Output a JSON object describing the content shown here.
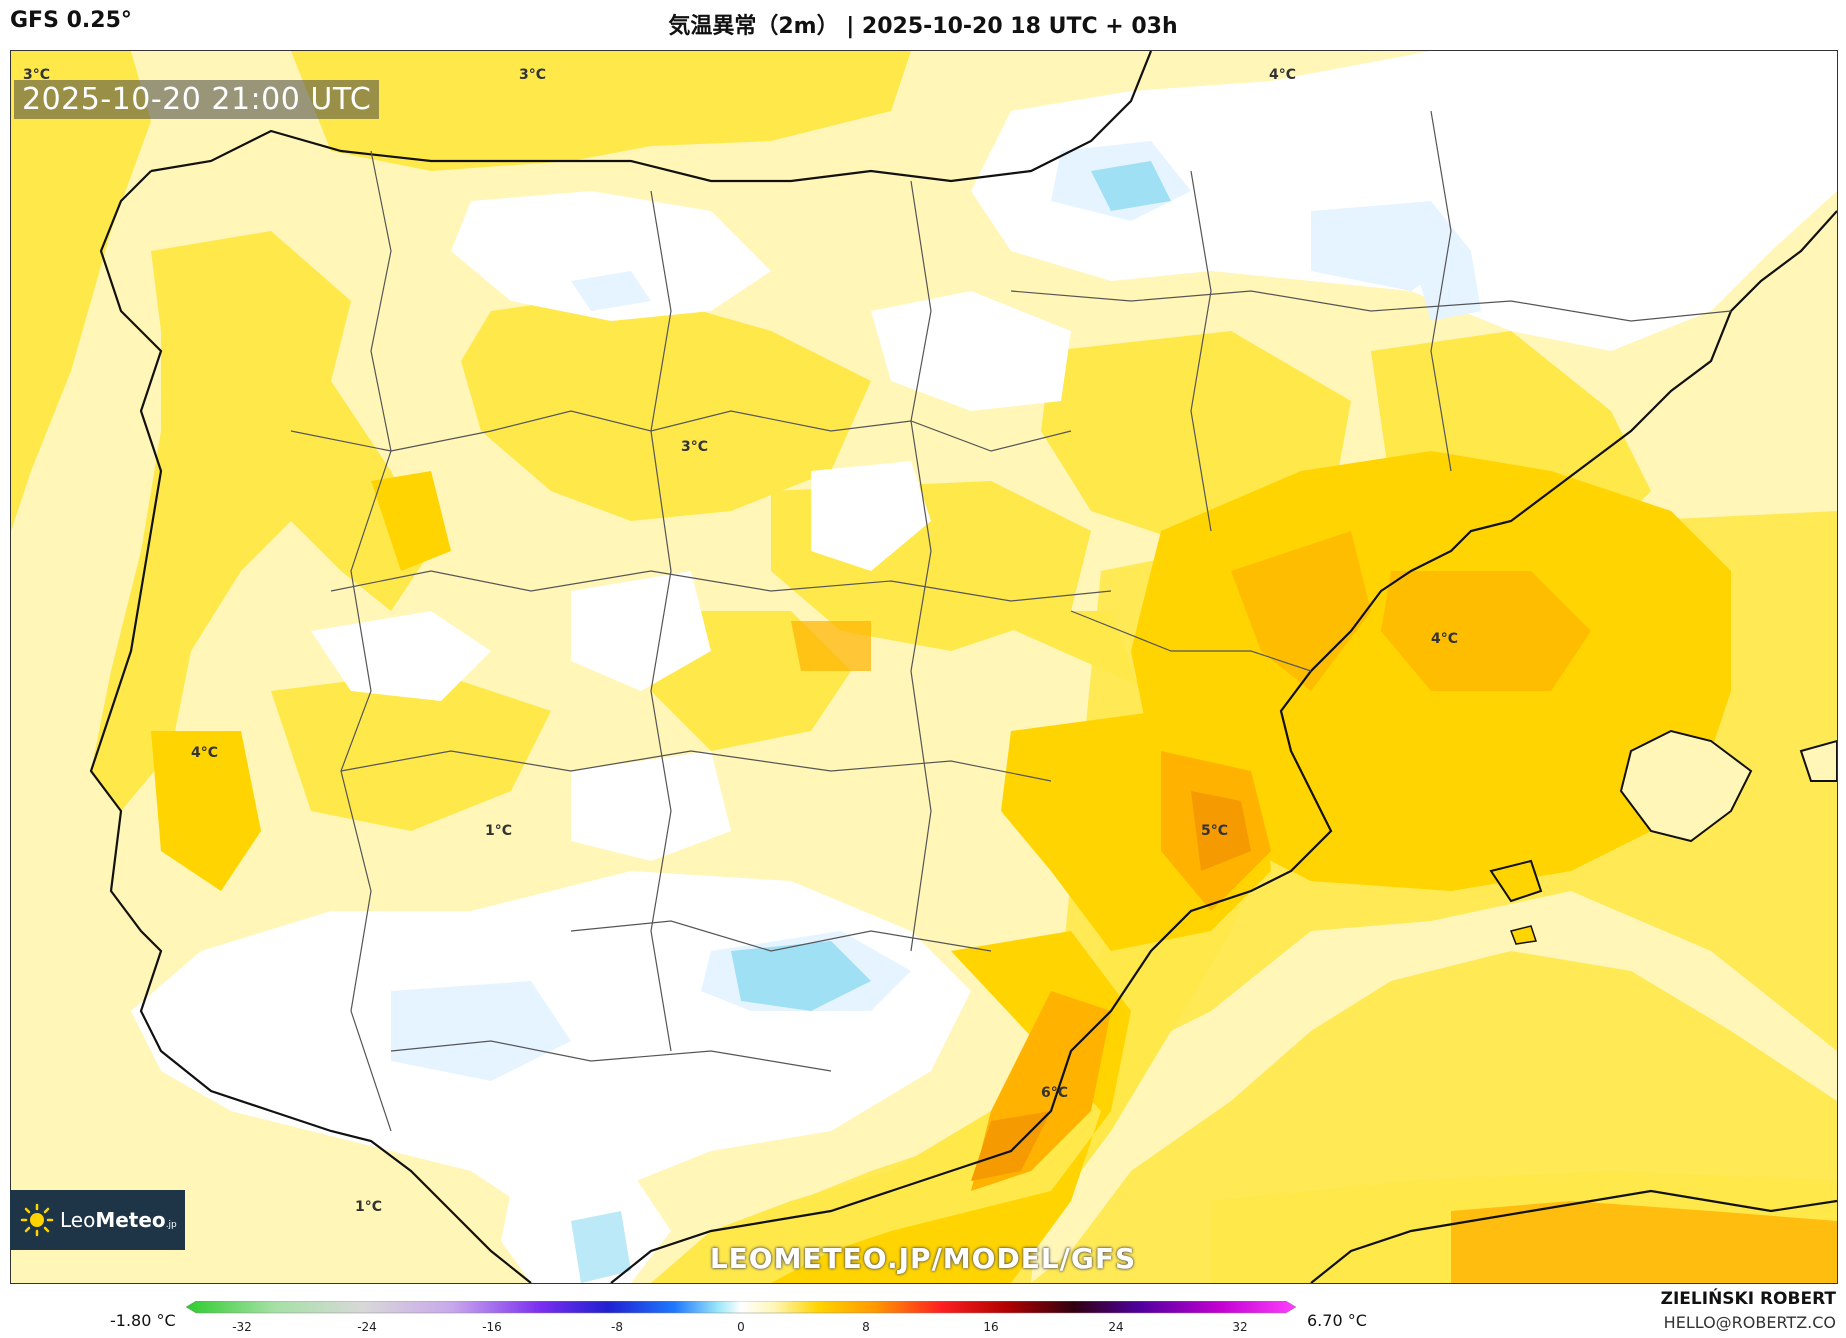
{
  "header": {
    "model": "GFS 0.25°",
    "title": "気温異常（2m） | 2025-10-20 18 UTC + 03h"
  },
  "map": {
    "valid_time": "2025-10-20 21:00 UTC",
    "contour_labels": [
      {
        "text": "3°C"
      },
      {
        "text": "3°C"
      },
      {
        "text": "4°C"
      },
      {
        "text": "3°C"
      },
      {
        "text": "4°C"
      },
      {
        "text": "4°C"
      },
      {
        "text": "1°C"
      },
      {
        "text": "5°C"
      },
      {
        "text": "6°C"
      },
      {
        "text": "1°C"
      }
    ],
    "colors": {
      "pale_yellow": "#fff6b8",
      "yellow": "#ffe84a",
      "gold": "#ffd400",
      "orange": "#ffb300",
      "dark_orange": "#f59a00",
      "white": "#ffffff",
      "pale_blue": "#e6f4ff",
      "light_blue": "#9fe0f5"
    }
  },
  "branding": {
    "logo_text_light": "Leo",
    "logo_text_bold": "Meteo",
    "logo_suffix": ".jp",
    "watermark": "LEOMETEO.JP/MODEL/GFS"
  },
  "legend": {
    "min_label": "-1.80 °C",
    "max_label": "6.70 °C",
    "ticks": [
      "-32",
      "-24",
      "-16",
      "-8",
      "0",
      "8",
      "16",
      "24",
      "32"
    ]
  },
  "credit": {
    "name": "ZIELIŃSKI ROBERT",
    "email": "HELLO@ROBERTZ.CO"
  }
}
